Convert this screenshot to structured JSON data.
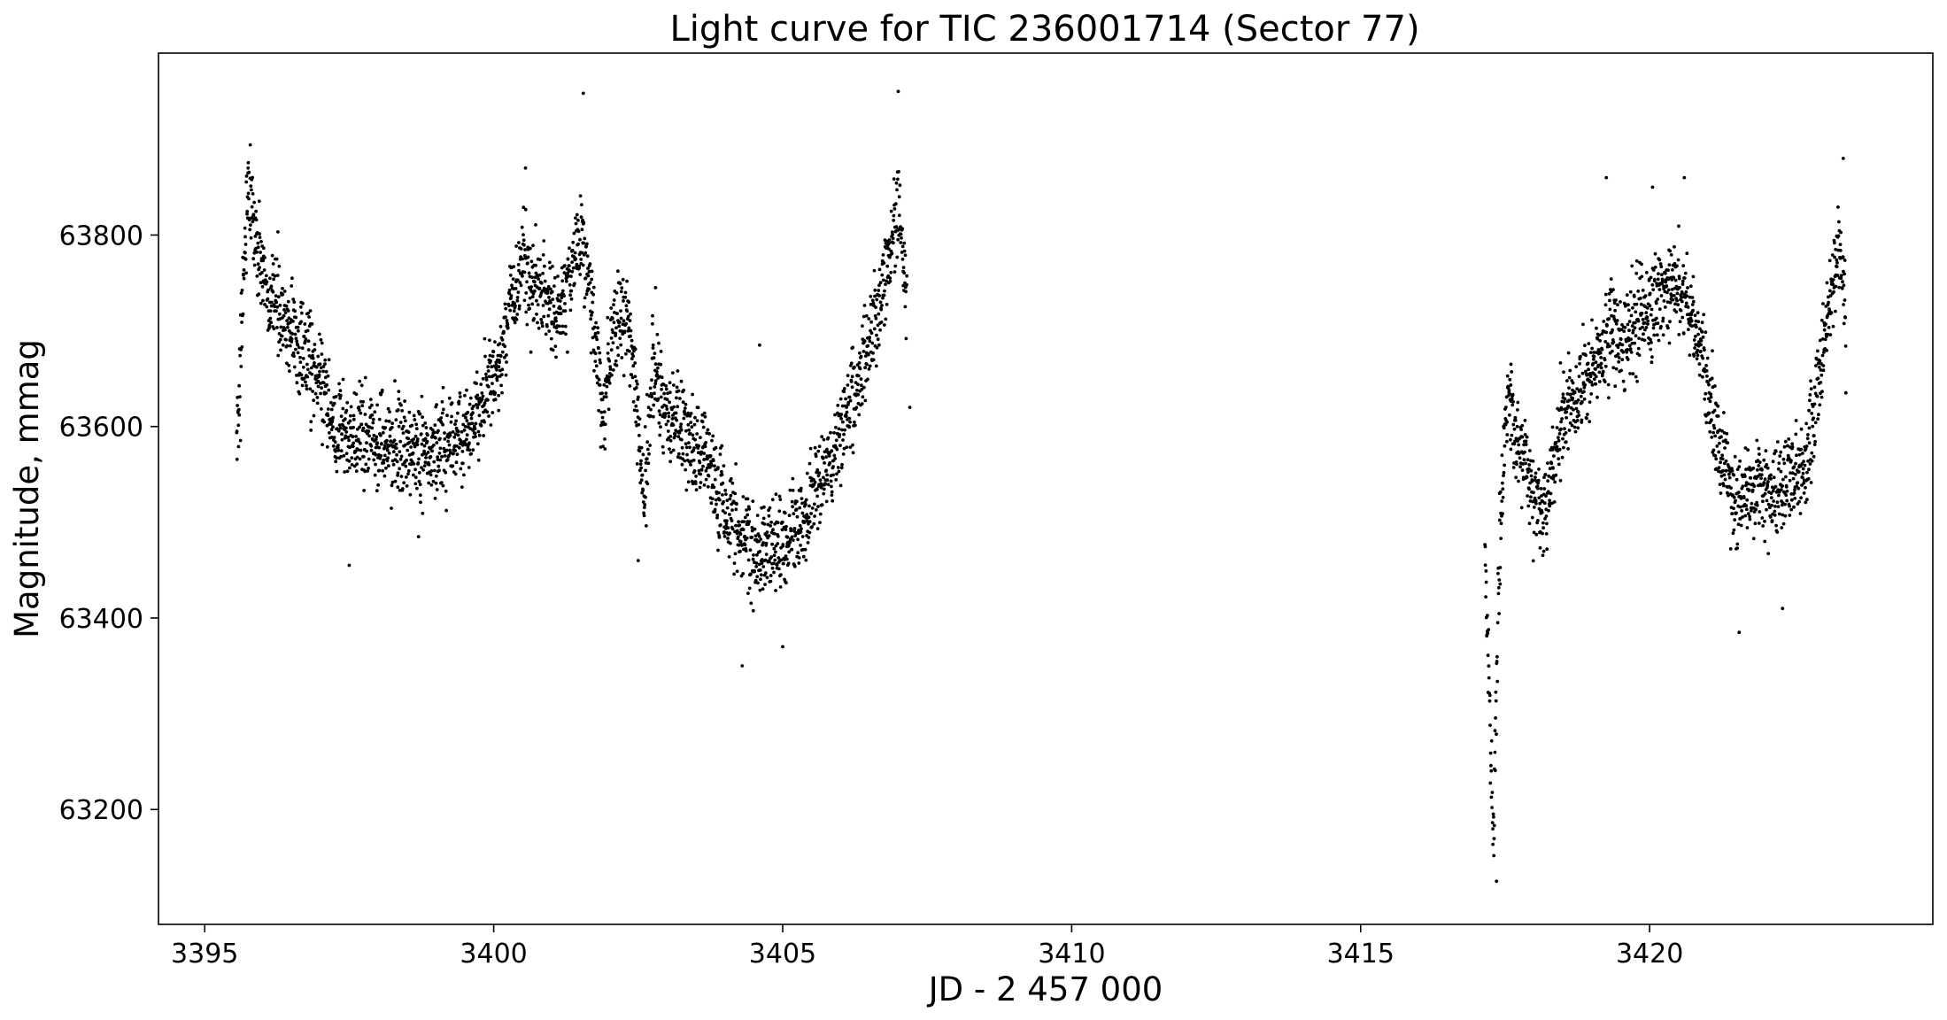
{
  "chart_data": {
    "type": "scatter",
    "title": "Light curve for TIC 236001714 (Sector 77)",
    "xlabel": "JD - 2 457 000",
    "ylabel": "Magnitude, mmag",
    "xlim": [
      3394.2,
      3424.9
    ],
    "ylim": [
      63080,
      63990
    ],
    "y_inverted": false,
    "grid": false,
    "legend": "none",
    "marker_color": "#000000",
    "x_ticks": [
      {
        "value": 3395,
        "label": "3395"
      },
      {
        "value": 3400,
        "label": "3400"
      },
      {
        "value": 3405,
        "label": "3405"
      },
      {
        "value": 3410,
        "label": "3410"
      },
      {
        "value": 3415,
        "label": "3415"
      },
      {
        "value": 3420,
        "label": "3420"
      }
    ],
    "y_ticks": [
      {
        "value": 63200,
        "label": "63200"
      },
      {
        "value": 63400,
        "label": "63400"
      },
      {
        "value": 63600,
        "label": "63600"
      },
      {
        "value": 63800,
        "label": "63800"
      }
    ],
    "series": [
      {
        "segments": [
          {
            "x_start": 3395.55,
            "x_end": 3407.15,
            "points": [
              [
                3395.55,
                63580
              ],
              [
                3395.62,
                63660
              ],
              [
                3395.7,
                63800
              ],
              [
                3395.78,
                63845
              ],
              [
                3395.9,
                63790
              ],
              [
                3396.1,
                63745
              ],
              [
                3396.4,
                63710
              ],
              [
                3396.7,
                63680
              ],
              [
                3397.0,
                63640
              ],
              [
                3397.3,
                63600
              ],
              [
                3397.6,
                63585
              ],
              [
                3398.0,
                63585
              ],
              [
                3398.4,
                63580
              ],
              [
                3398.8,
                63575
              ],
              [
                3399.2,
                63580
              ],
              [
                3399.5,
                63590
              ],
              [
                3399.8,
                63620
              ],
              [
                3400.1,
                63660
              ],
              [
                3400.3,
                63740
              ],
              [
                3400.5,
                63760
              ],
              [
                3400.8,
                63740
              ],
              [
                3401.1,
                63720
              ],
              [
                3401.3,
                63750
              ],
              [
                3401.5,
                63790
              ],
              [
                3401.65,
                63760
              ],
              [
                3401.8,
                63650
              ],
              [
                3401.9,
                63600
              ],
              [
                3402.0,
                63680
              ],
              [
                3402.2,
                63720
              ],
              [
                3402.35,
                63710
              ],
              [
                3402.6,
                63520
              ],
              [
                3402.75,
                63660
              ],
              [
                3403.0,
                63610
              ],
              [
                3403.4,
                63590
              ],
              [
                3403.8,
                63550
              ],
              [
                3404.2,
                63490
              ],
              [
                3404.6,
                63460
              ],
              [
                3405.0,
                63475
              ],
              [
                3405.4,
                63510
              ],
              [
                3405.8,
                63560
              ],
              [
                3406.2,
                63630
              ],
              [
                3406.5,
                63690
              ],
              [
                3406.8,
                63760
              ],
              [
                3407.0,
                63840
              ],
              [
                3407.15,
                63720
              ]
            ]
          },
          {
            "x_start": 3417.15,
            "x_end": 3423.4,
            "points": [
              [
                3417.15,
                63460
              ],
              [
                3417.22,
                63330
              ],
              [
                3417.3,
                63170
              ],
              [
                3417.4,
                63480
              ],
              [
                3417.55,
                63640
              ],
              [
                3417.7,
                63580
              ],
              [
                3417.85,
                63560
              ],
              [
                3418.0,
                63520
              ],
              [
                3418.2,
                63510
              ],
              [
                3418.4,
                63590
              ],
              [
                3418.7,
                63620
              ],
              [
                3419.0,
                63660
              ],
              [
                3419.3,
                63700
              ],
              [
                3419.6,
                63690
              ],
              [
                3419.9,
                63720
              ],
              [
                3420.2,
                63740
              ],
              [
                3420.5,
                63750
              ],
              [
                3420.7,
                63720
              ],
              [
                3420.9,
                63670
              ],
              [
                3421.1,
                63610
              ],
              [
                3421.3,
                63560
              ],
              [
                3421.5,
                63520
              ],
              [
                3421.8,
                63540
              ],
              [
                3422.1,
                63530
              ],
              [
                3422.4,
                63540
              ],
              [
                3422.7,
                63560
              ],
              [
                3422.9,
                63640
              ],
              [
                3423.1,
                63720
              ],
              [
                3423.3,
                63800
              ],
              [
                3423.4,
                63700
              ]
            ]
          }
        ],
        "outliers": [
          [
            3401.55,
            63948
          ],
          [
            3407.0,
            63950
          ],
          [
            3407.2,
            63620
          ],
          [
            3404.3,
            63350
          ],
          [
            3405.0,
            63370
          ],
          [
            3402.5,
            63460
          ],
          [
            3397.5,
            63455
          ],
          [
            3404.6,
            63685
          ],
          [
            3419.25,
            63860
          ],
          [
            3420.6,
            63860
          ],
          [
            3421.55,
            63385
          ],
          [
            3417.35,
            63125
          ],
          [
            3422.3,
            63410
          ],
          [
            3400.55,
            63870
          ],
          [
            3395.75,
            63870
          ],
          [
            3417.6,
            63665
          ],
          [
            3423.35,
            63880
          ],
          [
            3420.05,
            63850
          ],
          [
            3398.7,
            63485
          ],
          [
            3402.8,
            63745
          ]
        ]
      }
    ]
  }
}
